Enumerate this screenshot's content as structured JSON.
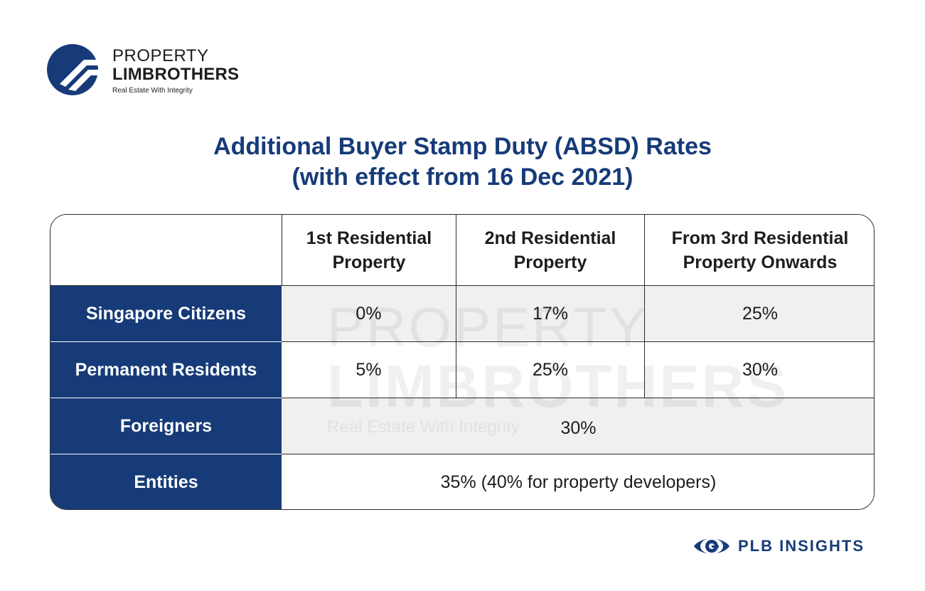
{
  "brand": {
    "line1": "PROPERTY",
    "line2": "LIMBROTHERS",
    "tagline": "Real Estate With Integrity"
  },
  "title": {
    "line1": "Additional Buyer Stamp Duty (ABSD) Rates",
    "line2": "(with effect from 16 Dec 2021)"
  },
  "table": {
    "headers": [
      "",
      "1st Residential Property",
      "2nd Residential Property",
      "From 3rd Residential Property Onwards"
    ],
    "rows": [
      {
        "label": "Singapore Citizens",
        "first": "0%",
        "second": "17%",
        "third": "25%"
      },
      {
        "label": "Permanent Residents",
        "first": "5%",
        "second": "25%",
        "third": "30%"
      },
      {
        "label": "Foreigners",
        "all": "30%"
      },
      {
        "label": "Entities",
        "all": "35% (40% for property developers)"
      }
    ]
  },
  "watermark": {
    "line1": "PROPERTY",
    "line2": "LIMBROTHERS",
    "line3": "Real Estate With Integrity"
  },
  "footer": {
    "badge_label": "PLB INSIGHTS"
  },
  "colors": {
    "brand_navy": "#163b78",
    "grey_row": "#f0f0f0"
  },
  "icons": [
    "property-limbrothers-logo-icon",
    "eye-icon"
  ]
}
